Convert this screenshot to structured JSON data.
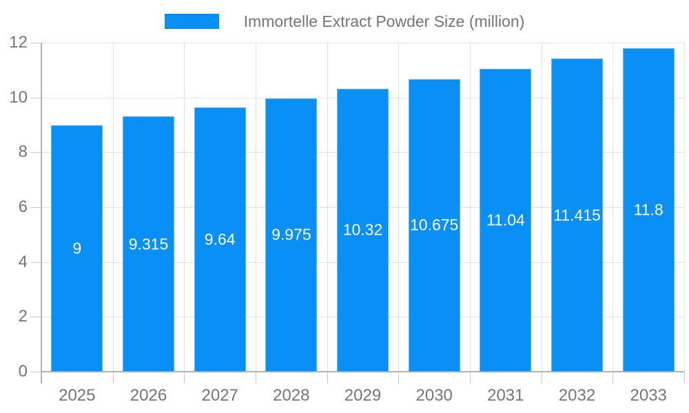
{
  "legend": {
    "label": "Immortelle Extract Powder Size (million)",
    "swatch_color": "#0a8ff5"
  },
  "chart_data": {
    "type": "bar",
    "title": "Immortelle Extract Powder Size (million)",
    "categories": [
      "2025",
      "2026",
      "2027",
      "2028",
      "2029",
      "2030",
      "2031",
      "2032",
      "2033"
    ],
    "values": [
      9,
      9.315,
      9.64,
      9.975,
      10.32,
      10.675,
      11.04,
      11.415,
      11.8
    ],
    "bar_labels": [
      "9",
      "9.315",
      "9.64",
      "9.975",
      "10.32",
      "10.675",
      "11.04",
      "11.415",
      "11.8"
    ],
    "xlabel": "",
    "ylabel": "",
    "ylim": [
      0,
      12
    ],
    "yticks": [
      0,
      2,
      4,
      6,
      8,
      10,
      12
    ],
    "grid": true,
    "legend_position": "top",
    "colors": {
      "bar": "#0a8ff5",
      "bar_label": "#ffffff",
      "gridline": "#e0e0e0",
      "axis": "#b3b3b3",
      "tick": "#c4c4c4",
      "label_text": "#757575"
    }
  }
}
